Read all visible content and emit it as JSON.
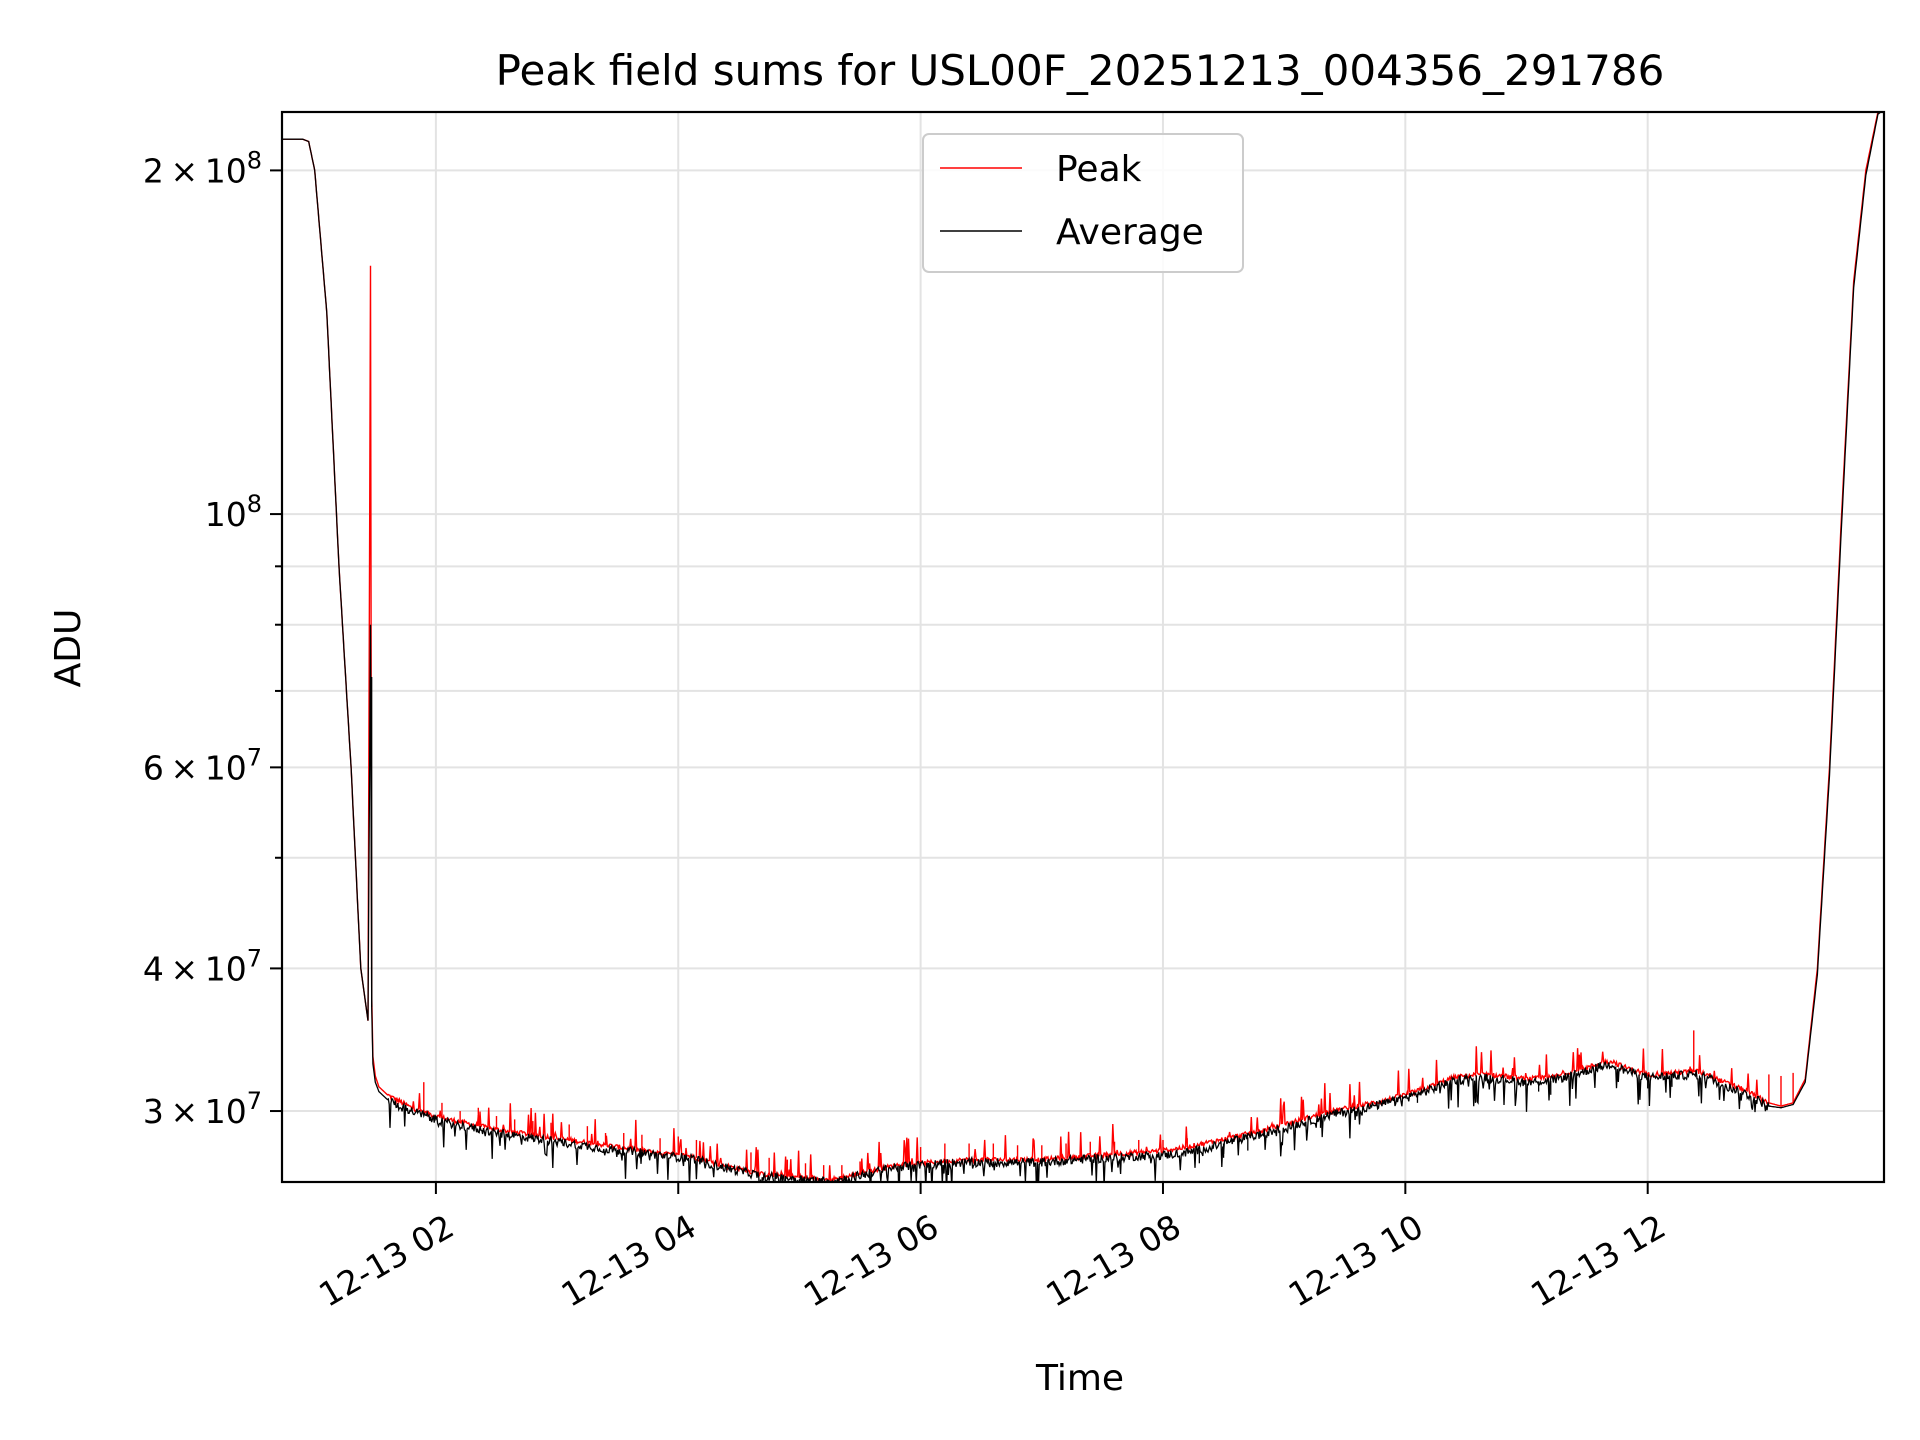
{
  "chart_data": {
    "type": "line",
    "title": "Peak field sums for USL00F_20251213_004356_291786",
    "xlabel": "Time",
    "ylabel": "ADU",
    "yscale": "log",
    "x_unit": "hours since 2025-12-13 00:00",
    "xlim": [
      0.73,
      13.95
    ],
    "ylim": [
      26000000,
      225000000
    ],
    "grid": true,
    "legend_placement": "upper center",
    "x_ticks": [
      {
        "value": 2,
        "label": "12-13 02"
      },
      {
        "value": 4,
        "label": "12-13 04"
      },
      {
        "value": 6,
        "label": "12-13 06"
      },
      {
        "value": 8,
        "label": "12-13 08"
      },
      {
        "value": 10,
        "label": "12-13 10"
      },
      {
        "value": 12,
        "label": "12-13 12"
      }
    ],
    "y_ticks_major": [
      {
        "value": 200000000,
        "mantissa": "2",
        "exponent": "8"
      },
      {
        "value": 100000000,
        "mantissa": "",
        "exponent": "8"
      },
      {
        "value": 60000000,
        "mantissa": "6",
        "exponent": "7"
      },
      {
        "value": 40000000,
        "mantissa": "4",
        "exponent": "7"
      },
      {
        "value": 30000000,
        "mantissa": "3",
        "exponent": "7"
      }
    ],
    "y_ticks_minor": [
      90000000,
      80000000,
      70000000,
      50000000
    ],
    "times_label_symbol": "×",
    "series": [
      {
        "name": "Peak",
        "color": "#ff0000",
        "x": [
          0.73,
          0.9,
          0.95,
          1.0,
          1.1,
          1.2,
          1.3,
          1.38,
          1.44,
          1.46,
          1.47,
          1.48,
          1.5,
          1.53,
          1.6,
          1.7,
          1.8,
          2.0,
          2.1,
          2.3,
          2.5,
          2.7,
          2.9,
          3.1,
          3.3,
          3.5,
          3.7,
          3.9,
          4.1,
          4.3,
          4.5,
          4.7,
          4.9,
          5.1,
          5.25,
          5.4,
          5.6,
          5.8,
          6.0,
          6.2,
          6.4,
          6.6,
          6.8,
          7.0,
          7.2,
          7.4,
          7.6,
          7.8,
          8.0,
          8.2,
          8.4,
          8.6,
          8.8,
          9.0,
          9.2,
          9.4,
          9.6,
          9.8,
          10.0,
          10.2,
          10.4,
          10.6,
          10.8,
          11.0,
          11.2,
          11.4,
          11.6,
          11.7,
          11.8,
          12.0,
          12.2,
          12.4,
          12.5,
          12.6,
          12.8,
          13.0,
          13.1,
          13.2,
          13.3,
          13.4,
          13.5,
          13.6,
          13.7,
          13.8,
          13.9,
          13.95
        ],
        "y": [
          213000000,
          213000000,
          212000000,
          200000000,
          150000000,
          90000000,
          60000000,
          40000000,
          36000000,
          165000000,
          38000000,
          33500000,
          32200000,
          31500000,
          31000000,
          30600000,
          30200000,
          29700000,
          29500000,
          29200000,
          28900000,
          28700000,
          28500000,
          28300000,
          28100000,
          27900000,
          27700000,
          27500000,
          27400000,
          27000000,
          26700000,
          26400000,
          26300000,
          26200000,
          26100000,
          26300000,
          26600000,
          26900000,
          27000000,
          27100000,
          27200000,
          27200000,
          27200000,
          27200000,
          27300000,
          27400000,
          27500000,
          27600000,
          27700000,
          27900000,
          28200000,
          28500000,
          28800000,
          29200000,
          29600000,
          30000000,
          30300000,
          30600000,
          31000000,
          31500000,
          32100000,
          32300000,
          32200000,
          32000000,
          32100000,
          32500000,
          33000000,
          33200000,
          32800000,
          32300000,
          32400000,
          32500000,
          32300000,
          31900000,
          31300000,
          30500000,
          30300000,
          30500000,
          32000000,
          40000000,
          60000000,
          100000000,
          160000000,
          200000000,
          225000000,
          226000000
        ]
      },
      {
        "name": "Average",
        "color": "#000000",
        "x": [
          0.73,
          0.9,
          0.95,
          1.0,
          1.1,
          1.2,
          1.3,
          1.38,
          1.44,
          1.46,
          1.47,
          1.48,
          1.5,
          1.53,
          1.6,
          1.7,
          1.8,
          2.0,
          2.1,
          2.3,
          2.5,
          2.7,
          2.9,
          3.1,
          3.3,
          3.5,
          3.7,
          3.9,
          4.1,
          4.3,
          4.5,
          4.7,
          4.9,
          5.1,
          5.25,
          5.4,
          5.6,
          5.8,
          6.0,
          6.2,
          6.4,
          6.6,
          6.8,
          7.0,
          7.2,
          7.4,
          7.6,
          7.8,
          8.0,
          8.2,
          8.4,
          8.6,
          8.8,
          9.0,
          9.2,
          9.4,
          9.6,
          9.8,
          10.0,
          10.2,
          10.4,
          10.6,
          10.8,
          11.0,
          11.2,
          11.4,
          11.6,
          11.7,
          11.8,
          12.0,
          12.2,
          12.4,
          12.5,
          12.6,
          12.8,
          13.0,
          13.1,
          13.2,
          13.3,
          13.4,
          13.5,
          13.6,
          13.7,
          13.8,
          13.9,
          13.95
        ],
        "y": [
          213000000,
          213000000,
          212000000,
          200000000,
          150000000,
          90000000,
          60000000,
          40000000,
          36000000,
          80000000,
          37000000,
          33000000,
          31800000,
          31200000,
          30700000,
          30300000,
          30000000,
          29500000,
          29300000,
          29000000,
          28700000,
          28500000,
          28300000,
          28100000,
          27900000,
          27700000,
          27600000,
          27400000,
          27300000,
          26900000,
          26600000,
          26300000,
          26200000,
          26100000,
          26050000,
          26200000,
          26500000,
          26800000,
          26900000,
          27000000,
          27050000,
          27050000,
          27050000,
          27050000,
          27150000,
          27250000,
          27300000,
          27400000,
          27450000,
          27600000,
          27900000,
          28300000,
          28600000,
          29000000,
          29400000,
          29800000,
          30100000,
          30400000,
          30800000,
          31300000,
          31900000,
          32100000,
          32000000,
          31800000,
          31900000,
          32300000,
          32800000,
          33000000,
          32600000,
          32100000,
          32200000,
          32300000,
          32100000,
          31700000,
          31100000,
          30300000,
          30200000,
          30400000,
          31800000,
          39500000,
          59000000,
          98000000,
          158000000,
          198000000,
          224000000,
          226000000
        ]
      }
    ],
    "spikes_peak": [
      [
        1.9,
        31800000
      ],
      [
        2.05,
        30500000
      ],
      [
        2.2,
        30000000
      ],
      [
        2.35,
        30200000
      ],
      [
        2.5,
        29700000
      ],
      [
        2.65,
        29500000
      ],
      [
        2.8,
        29400000
      ],
      [
        2.95,
        29300000
      ],
      [
        3.1,
        29200000
      ],
      [
        3.25,
        29100000
      ],
      [
        3.4,
        28700000
      ],
      [
        3.55,
        28700000
      ],
      [
        3.7,
        28600000
      ],
      [
        3.85,
        28400000
      ],
      [
        4.0,
        28500000
      ],
      [
        4.15,
        28300000
      ],
      [
        4.6,
        27600000
      ],
      [
        4.75,
        27300000
      ],
      [
        4.9,
        27200000
      ],
      [
        5.05,
        27000000
      ],
      [
        5.2,
        26900000
      ],
      [
        5.35,
        26900000
      ],
      [
        5.5,
        27100000
      ],
      [
        6.0,
        27900000
      ],
      [
        6.2,
        28100000
      ],
      [
        6.4,
        28100000
      ],
      [
        6.6,
        28100000
      ],
      [
        6.8,
        28000000
      ],
      [
        7.0,
        28000000
      ],
      [
        7.2,
        28100000
      ],
      [
        7.4,
        28200000
      ],
      [
        7.6,
        28200000
      ],
      [
        7.8,
        28300000
      ],
      [
        8.0,
        28300000
      ],
      [
        8.2,
        28400000
      ],
      [
        12.38,
        35300000
      ],
      [
        13.0,
        32300000
      ],
      [
        13.1,
        32200000
      ],
      [
        13.2,
        32400000
      ]
    ],
    "spikes_average": [
      [
        1.47,
        72000000
      ],
      [
        3.0,
        28000000
      ],
      [
        4.4,
        26500000
      ],
      [
        5.0,
        25900000
      ],
      [
        8.3,
        27000000
      ],
      [
        8.5,
        27300000
      ],
      [
        8.7,
        27700000
      ],
      [
        9.3,
        29000000
      ],
      [
        10.1,
        30500000
      ],
      [
        11.1,
        31200000
      ],
      [
        11.2,
        31000000
      ],
      [
        12.0,
        31400000
      ],
      [
        12.2,
        31500000
      ]
    ]
  }
}
